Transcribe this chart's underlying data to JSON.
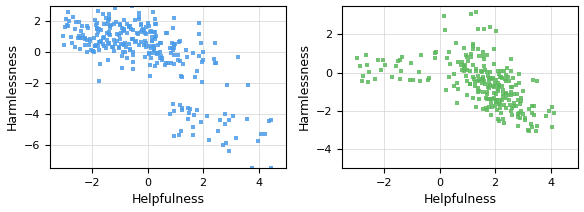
{
  "color1": "#4C9BE8",
  "color2": "#5CB85C",
  "xlabel": "Helpfulness",
  "ylabel": "Harmlessness",
  "marker": "s",
  "markersize": 3,
  "alpha": 0.85,
  "xlim1": [
    -3.5,
    5.0
  ],
  "ylim1": [
    -7.5,
    3.0
  ],
  "xlim2": [
    -3.5,
    5.0
  ],
  "ylim2": [
    -5.0,
    3.5
  ],
  "xticks1": [
    -2,
    0,
    2,
    4
  ],
  "yticks1": [
    -6,
    -4,
    -2,
    0,
    2
  ],
  "xticks2": [
    -2,
    0,
    2,
    4
  ],
  "yticks2": [
    -4,
    -2,
    0,
    2
  ],
  "figsize": [
    5.84,
    2.12
  ],
  "dpi": 100,
  "tick_fontsize": 8,
  "label_fontsize": 9
}
